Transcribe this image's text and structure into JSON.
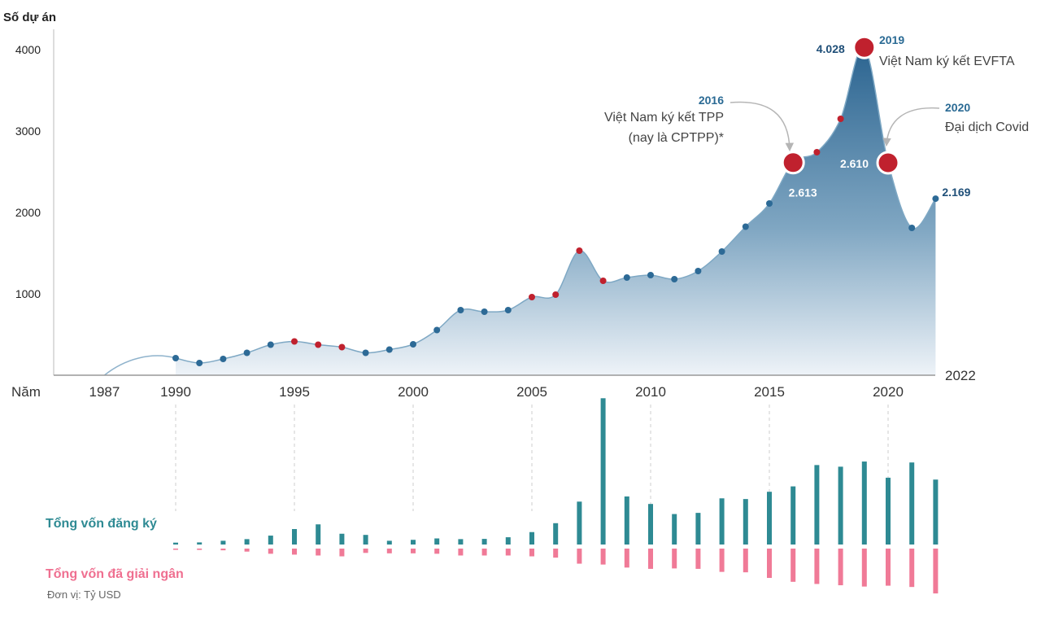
{
  "chart_data": {
    "type": "area",
    "ylabel": "Số dự án",
    "xlabel": "Năm",
    "yticks": [
      1000,
      2000,
      3000,
      4000
    ],
    "ylim": [
      0,
      4300
    ],
    "xlim": [
      1983,
      2022
    ],
    "end_year_label": "2022",
    "xtick_labels": [
      {
        "year": 1987,
        "label": "1987"
      },
      {
        "year": 1990,
        "label": "1990"
      },
      {
        "year": 1995,
        "label": "1995"
      },
      {
        "year": 2000,
        "label": "2000"
      },
      {
        "year": 2005,
        "label": "2005"
      },
      {
        "year": 2010,
        "label": "2010"
      },
      {
        "year": 2015,
        "label": "2015"
      },
      {
        "year": 2020,
        "label": "2020"
      }
    ],
    "points": [
      {
        "year": 1990,
        "value": 210,
        "color": "#2d6a96"
      },
      {
        "year": 1991,
        "value": 150,
        "color": "#2d6a96"
      },
      {
        "year": 1992,
        "value": 200,
        "color": "#2d6a96"
      },
      {
        "year": 1993,
        "value": 275,
        "color": "#2d6a96"
      },
      {
        "year": 1994,
        "value": 375,
        "color": "#2d6a96"
      },
      {
        "year": 1995,
        "value": 415,
        "color": "#c0212e"
      },
      {
        "year": 1996,
        "value": 375,
        "color": "#c0212e"
      },
      {
        "year": 1997,
        "value": 345,
        "color": "#c0212e"
      },
      {
        "year": 1998,
        "value": 275,
        "color": "#2d6a96"
      },
      {
        "year": 1999,
        "value": 315,
        "color": "#2d6a96"
      },
      {
        "year": 2000,
        "value": 380,
        "color": "#2d6a96"
      },
      {
        "year": 2001,
        "value": 555,
        "color": "#2d6a96"
      },
      {
        "year": 2002,
        "value": 800,
        "color": "#2d6a96"
      },
      {
        "year": 2003,
        "value": 780,
        "color": "#2d6a96"
      },
      {
        "year": 2004,
        "value": 800,
        "color": "#2d6a96"
      },
      {
        "year": 2005,
        "value": 960,
        "color": "#c0212e"
      },
      {
        "year": 2006,
        "value": 990,
        "color": "#c0212e"
      },
      {
        "year": 2007,
        "value": 1530,
        "color": "#c0212e"
      },
      {
        "year": 2008,
        "value": 1160,
        "color": "#c0212e"
      },
      {
        "year": 2009,
        "value": 1200,
        "color": "#2d6a96"
      },
      {
        "year": 2010,
        "value": 1230,
        "color": "#2d6a96"
      },
      {
        "year": 2011,
        "value": 1180,
        "color": "#2d6a96"
      },
      {
        "year": 2012,
        "value": 1280,
        "color": "#2d6a96"
      },
      {
        "year": 2013,
        "value": 1520,
        "color": "#2d6a96"
      },
      {
        "year": 2014,
        "value": 1825,
        "color": "#2d6a96"
      },
      {
        "year": 2015,
        "value": 2110,
        "color": "#2d6a96"
      },
      {
        "year": 2016,
        "value": 2613,
        "color": "#c0212e",
        "big": true
      },
      {
        "year": 2017,
        "value": 2740,
        "color": "#c0212e"
      },
      {
        "year": 2018,
        "value": 3150,
        "color": "#c0212e"
      },
      {
        "year": 2019,
        "value": 4028,
        "color": "#c0212e",
        "big": true
      },
      {
        "year": 2020,
        "value": 2610,
        "color": "#c0212e",
        "big": true
      },
      {
        "year": 2021,
        "value": 1810,
        "color": "#2d6a96"
      },
      {
        "year": 2022,
        "value": 2169,
        "color": "#2d6a96"
      }
    ],
    "value_labels": [
      {
        "year": 2016,
        "text": "2.613"
      },
      {
        "year": 2019,
        "text": "4.028"
      },
      {
        "year": 2020,
        "text": "2.610"
      },
      {
        "year": 2022,
        "text": "2.169"
      }
    ],
    "annotations": [
      {
        "year_label": "2016",
        "line1": "Việt Nam ký kết TPP",
        "line2": "(nay là CPTPP)*"
      },
      {
        "year_label": "2019",
        "line1": "Việt Nam ký kết EVFTA"
      },
      {
        "year_label": "2020",
        "line1": "Đại dịch Covid"
      }
    ],
    "bars": {
      "registered_label": "Tổng vốn đăng ký",
      "disbursed_label": "Tổng vốn đã giải ngân",
      "unit_label": "Đơn vị: Tỷ USD",
      "registered_color": "#2e8a93",
      "disbursed_color": "#f07a97",
      "years": [
        1990,
        1991,
        1992,
        1993,
        1994,
        1995,
        1996,
        1997,
        1998,
        1999,
        2000,
        2001,
        2002,
        2003,
        2004,
        2005,
        2006,
        2007,
        2008,
        2009,
        2010,
        2011,
        2012,
        2013,
        2014,
        2015,
        2016,
        2017,
        2018,
        2019,
        2020,
        2021,
        2022
      ],
      "registered": [
        0.8,
        0.9,
        1.6,
        2.3,
        3.8,
        6.6,
        8.6,
        4.6,
        4.1,
        1.6,
        2.0,
        2.6,
        2.3,
        2.4,
        3.1,
        5.3,
        9.1,
        18.3,
        62.4,
        20.5,
        17.3,
        13.0,
        13.5,
        19.7,
        19.4,
        22.5,
        24.8,
        33.9,
        33.2,
        35.4,
        28.5,
        35.0,
        27.7
      ],
      "disbursed": [
        0.2,
        0.3,
        0.4,
        0.7,
        1.2,
        1.4,
        1.6,
        1.8,
        1.0,
        1.1,
        1.1,
        1.2,
        1.6,
        1.6,
        1.6,
        1.8,
        2.1,
        3.5,
        3.7,
        4.4,
        4.7,
        4.6,
        4.7,
        5.4,
        5.5,
        6.8,
        7.7,
        8.2,
        8.5,
        8.8,
        8.6,
        8.9,
        10.4
      ]
    }
  }
}
